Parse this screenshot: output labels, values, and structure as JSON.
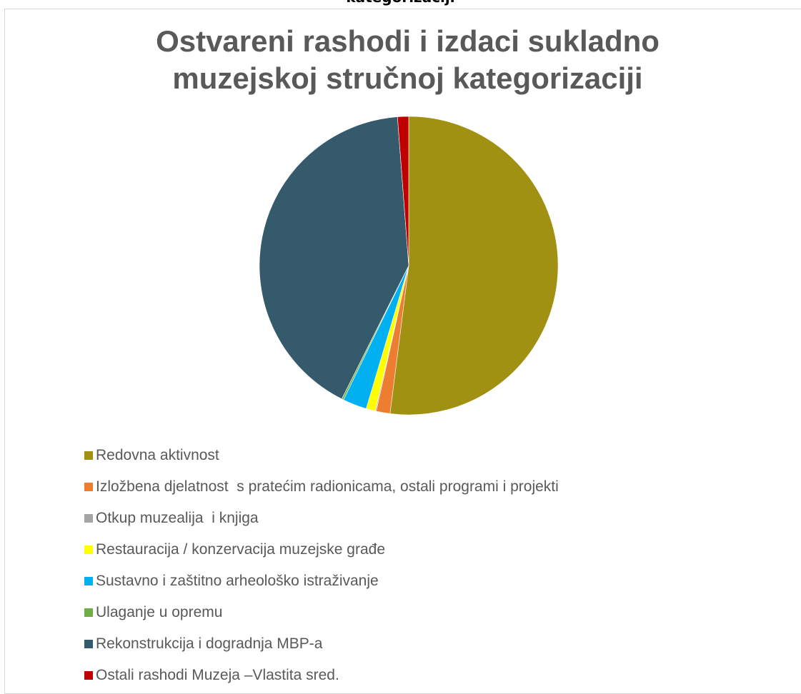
{
  "header": {
    "cut_text": "kategorizaciji"
  },
  "chart_data": {
    "type": "pie",
    "title": "Ostvareni rashodi i izdaci sukladno muzejskoj stručnoj kategorizaciji",
    "title_lines": [
      "Ostvareni rashodi i izdaci sukladno",
      "muzejskoj stručnoj kategorizaciji"
    ],
    "legend_position": "bottom",
    "start_angle_deg": 0,
    "direction": "clockwise",
    "categories": [
      "Redovna aktivnost",
      "Izložbena djelatnost  s pratećim radionicama, ostali programi i projekti",
      "Otkup muzealija  i knjiga",
      "Restauracija / konzervacija muzejske građe",
      "Sustavno i zaštitno arheološko istraživanje",
      "Ulaganje u opremu",
      "Rekonstrukcija i dogradnja MBP-a",
      "Ostali rashodi Muzeja –Vlastita sred."
    ],
    "values": [
      52.0,
      1.5,
      0.1,
      1.0,
      2.6,
      0.2,
      41.4,
      1.2
    ],
    "colors": [
      "#a09113",
      "#ed7d31",
      "#a5a5a5",
      "#ffff00",
      "#00b0f0",
      "#70ad47",
      "#345a6b",
      "#c00000"
    ]
  }
}
